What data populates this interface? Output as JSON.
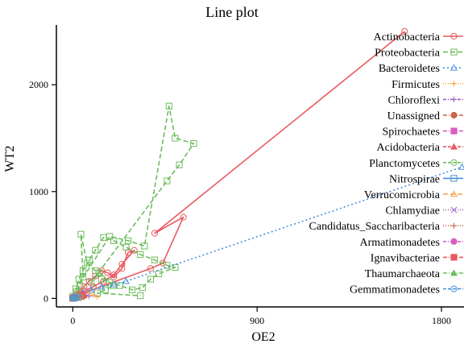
{
  "chart_data": {
    "type": "line",
    "title": "Line plot",
    "xlabel": "OE2",
    "ylabel": "WT2",
    "xlim": [
      -80,
      1910
    ],
    "ylim": [
      -80,
      2560
    ],
    "xticks": [
      0,
      900,
      1800
    ],
    "yticks": [
      0,
      1000,
      2000
    ],
    "legend_position": "top-right",
    "series": [
      {
        "name": "Actinobacteria",
        "color": "#e8595f",
        "dash": "",
        "marker": "circle",
        "x": [
          0,
          15,
          30,
          55,
          80,
          110,
          140,
          170,
          200,
          240,
          270,
          300,
          240,
          200,
          150,
          100,
          60,
          30,
          10,
          380,
          440,
          540,
          400,
          1620
        ],
        "y": [
          10,
          40,
          70,
          110,
          160,
          210,
          260,
          240,
          200,
          280,
          430,
          450,
          320,
          220,
          160,
          110,
          70,
          40,
          20,
          280,
          330,
          760,
          610,
          2500
        ]
      },
      {
        "name": "Proteobacteria",
        "color": "#6dbd5c",
        "dash": "6,3",
        "marker": "square",
        "x": [
          0,
          20,
          35,
          50,
          40,
          70,
          110,
          140,
          180,
          230,
          290,
          340,
          380,
          420,
          500,
          460,
          400,
          330,
          260,
          200,
          150,
          110,
          80,
          50,
          30,
          15,
          180,
          270,
          350,
          470,
          500,
          590,
          520,
          460,
          90,
          130,
          200,
          160,
          120,
          330
        ],
        "y": [
          20,
          60,
          120,
          200,
          600,
          330,
          260,
          180,
          150,
          120,
          80,
          100,
          180,
          230,
          290,
          310,
          360,
          410,
          480,
          540,
          570,
          450,
          360,
          260,
          180,
          90,
          580,
          540,
          490,
          1800,
          1500,
          1450,
          1250,
          1100,
          150,
          240,
          120,
          80,
          50,
          25
        ]
      },
      {
        "name": "Bacteroidetes",
        "color": "#4a90d9",
        "dash": "2,3",
        "marker": "triangle",
        "x": [
          0,
          20,
          50,
          90,
          140,
          200,
          260,
          1900
        ],
        "y": [
          5,
          25,
          50,
          80,
          110,
          130,
          160,
          1230
        ]
      },
      {
        "name": "Firmicutes",
        "color": "#f5a04a",
        "dash": "1,2",
        "marker": "plus",
        "x": [
          0,
          10,
          25,
          40,
          60,
          80,
          100,
          120
        ],
        "y": [
          3,
          10,
          20,
          35,
          25,
          45,
          30,
          15
        ]
      },
      {
        "name": "Chloroflexi",
        "color": "#a05fbf",
        "dash": "4,2,1,2",
        "marker": "plus",
        "x": [
          0,
          15,
          30,
          45,
          60,
          80
        ],
        "y": [
          5,
          15,
          25,
          40,
          30,
          20
        ]
      },
      {
        "name": "Unassigned",
        "color": "#c9674a",
        "dash": "5,2,1,2",
        "marker": "filled-circle",
        "x": [
          0,
          10,
          20,
          35,
          50
        ],
        "y": [
          4,
          12,
          22,
          30,
          18
        ]
      },
      {
        "name": "Spirochaetes",
        "color": "#d65fbf",
        "dash": "5,2,1,2",
        "marker": "filled-square",
        "x": [
          0,
          8,
          18,
          30
        ],
        "y": [
          2,
          8,
          14,
          10
        ]
      },
      {
        "name": "Acidobacteria",
        "color": "#e8595f",
        "dash": "4,2",
        "marker": "filled-triangle",
        "x": [
          0,
          12,
          25,
          40,
          55
        ],
        "y": [
          6,
          18,
          30,
          42,
          28
        ]
      },
      {
        "name": "Planctomycetes",
        "color": "#6dbd5c",
        "dash": "4,2",
        "marker": "circle",
        "x": [
          0,
          10,
          22,
          35
        ],
        "y": [
          3,
          10,
          18,
          12
        ]
      },
      {
        "name": "Nitrospirae",
        "color": "#4a90d9",
        "dash": "",
        "marker": "square",
        "x": [
          0,
          6,
          14,
          24
        ],
        "y": [
          2,
          6,
          11,
          8
        ]
      },
      {
        "name": "Verrucomicrobia",
        "color": "#f5a04a",
        "dash": "6,3",
        "marker": "triangle",
        "x": [
          0,
          8,
          16,
          26
        ],
        "y": [
          3,
          7,
          12,
          9
        ]
      },
      {
        "name": "Chlamydiae",
        "color": "#a05fbf",
        "dash": "1,2",
        "marker": "cross",
        "x": [
          0,
          5,
          12
        ],
        "y": [
          1,
          4,
          7
        ]
      },
      {
        "name": "Candidatus_Saccharibacteria",
        "color": "#c9674a",
        "dash": "1,2",
        "marker": "plus",
        "x": [
          0,
          7,
          15,
          22
        ],
        "y": [
          2,
          5,
          9,
          6
        ]
      },
      {
        "name": "Armatimonadetes",
        "color": "#d65fbf",
        "dash": "4,2,1,2",
        "marker": "filled-circle",
        "x": [
          0,
          4,
          9
        ],
        "y": [
          1,
          3,
          5
        ]
      },
      {
        "name": "Ignavibacteriae",
        "color": "#e8595f",
        "dash": "5,2,1,2",
        "marker": "filled-square",
        "x": [
          0,
          5,
          10
        ],
        "y": [
          1,
          4,
          6
        ]
      },
      {
        "name": "Thaumarchaeota",
        "color": "#6dbd5c",
        "dash": "5,2,1,2",
        "marker": "filled-triangle",
        "x": [
          0,
          6,
          13
        ],
        "y": [
          2,
          5,
          8
        ]
      },
      {
        "name": "Gemmatimonadetes",
        "color": "#4a90d9",
        "dash": "4,2",
        "marker": "circle",
        "x": [
          0,
          5,
          11,
          18
        ],
        "y": [
          1,
          4,
          7,
          5
        ]
      }
    ]
  }
}
